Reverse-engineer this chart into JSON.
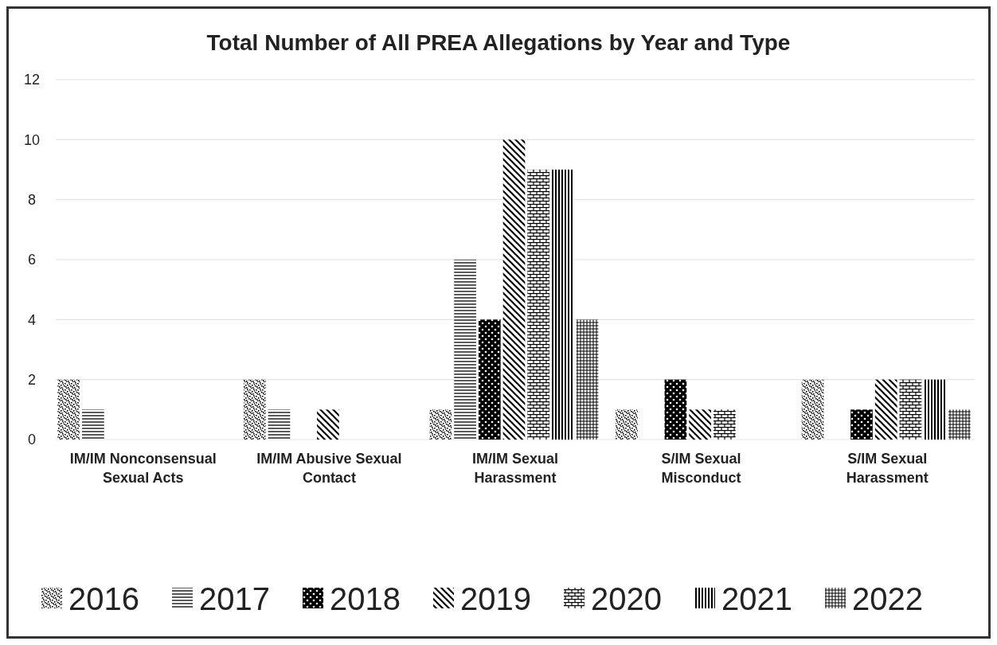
{
  "chart_data": {
    "type": "bar",
    "title": "Total Number of All PREA Allegations by Year and Type",
    "categories": [
      "IM/IM Nonconsensual Sexual Acts",
      "IM/IM Abusive Sexual Contact",
      "IM/IM Sexual Harassment",
      "S/IM Sexual Misconduct",
      "S/IM Sexual Harassment"
    ],
    "series": [
      {
        "name": "2016",
        "color": "#000000",
        "values": [
          2,
          2,
          1,
          1,
          2
        ]
      },
      {
        "name": "2017",
        "color": "#000000",
        "values": [
          1,
          1,
          6,
          0,
          0
        ]
      },
      {
        "name": "2018",
        "color": "#000000",
        "values": [
          0,
          0,
          4,
          2,
          1
        ]
      },
      {
        "name": "2019",
        "color": "#000000",
        "values": [
          0,
          1,
          10,
          1,
          2
        ]
      },
      {
        "name": "2020",
        "color": "#000000",
        "values": [
          0,
          0,
          9,
          1,
          2
        ]
      },
      {
        "name": "2021",
        "color": "#000000",
        "values": [
          0,
          0,
          9,
          0,
          2
        ]
      },
      {
        "name": "2022",
        "color": "#000000",
        "values": [
          0,
          0,
          4,
          0,
          1
        ]
      }
    ],
    "ylim": [
      0,
      12
    ],
    "yticks": [
      0,
      2,
      4,
      6,
      8,
      10,
      12
    ],
    "grid": "y",
    "legend": "bottom"
  }
}
